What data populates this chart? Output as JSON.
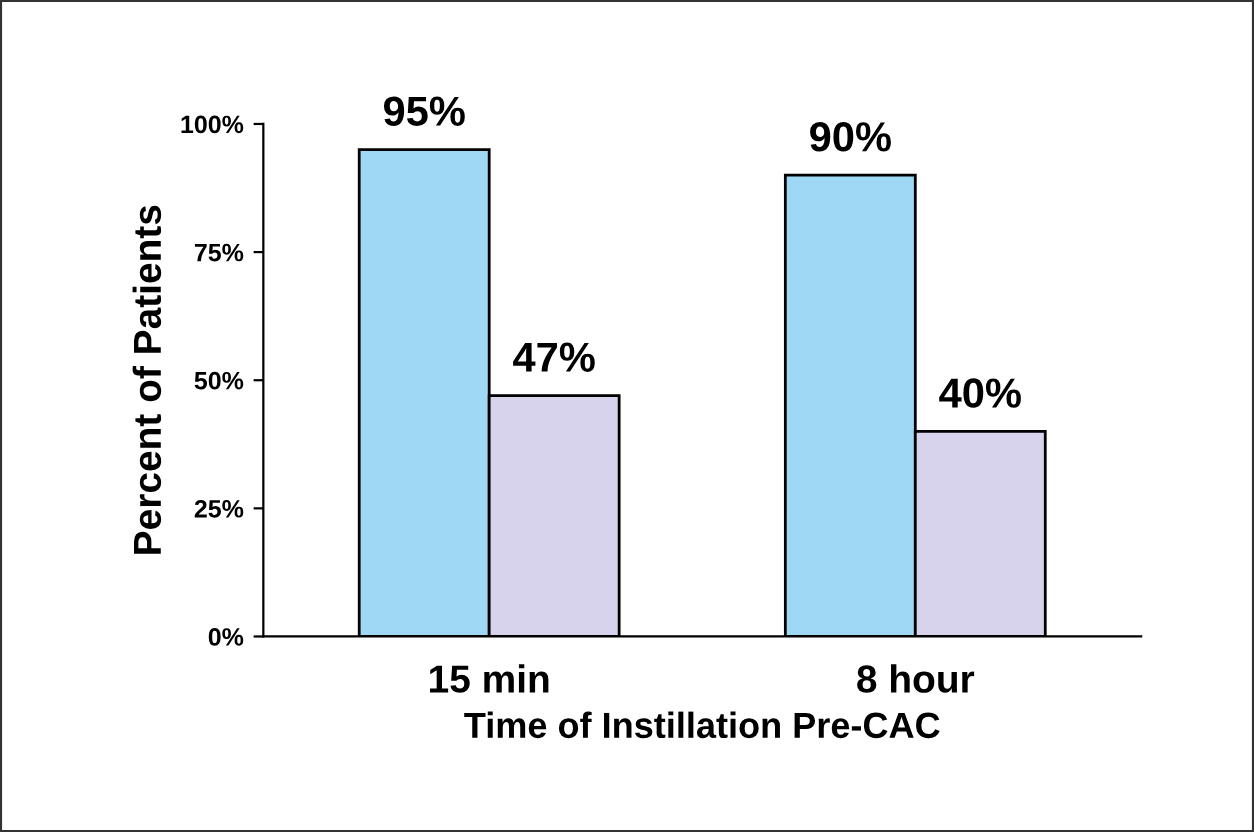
{
  "chart_data": {
    "type": "bar",
    "ylabel": "Percent of Patients",
    "xlabel": "Time of Instillation Pre-CAC",
    "categories": [
      "15 min",
      "8 hour"
    ],
    "series": [
      {
        "color": "#9fd8f4",
        "values": [
          95,
          90
        ],
        "value_labels": [
          "95%",
          "90%"
        ]
      },
      {
        "color": "#d8d3ec",
        "values": [
          47,
          40
        ],
        "value_labels": [
          "47%",
          "40%"
        ]
      }
    ],
    "ylim": [
      0,
      100
    ],
    "yticks": [
      {
        "value": 0,
        "label": "0%"
      },
      {
        "value": 25,
        "label": "25%"
      },
      {
        "value": 50,
        "label": "50%"
      },
      {
        "value": 75,
        "label": "75%"
      },
      {
        "value": 100,
        "label": "100%"
      }
    ],
    "grid": false,
    "legend": false
  }
}
